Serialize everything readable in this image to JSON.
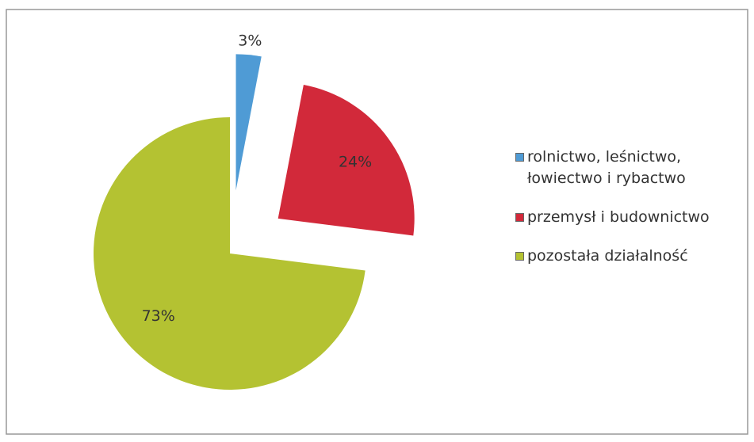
{
  "chart_data": {
    "type": "pie",
    "categories": [
      "rolnictwo, leśnictwo, łowiectwo i rybactwo",
      "przemysł i budownictwo",
      "pozostała działalność"
    ],
    "values": [
      3,
      24,
      73
    ],
    "value_labels": [
      "3%",
      "24%",
      "73%"
    ],
    "colors": [
      "#4f9bd5",
      "#d2293a",
      "#b4c232"
    ],
    "legend": "right"
  }
}
